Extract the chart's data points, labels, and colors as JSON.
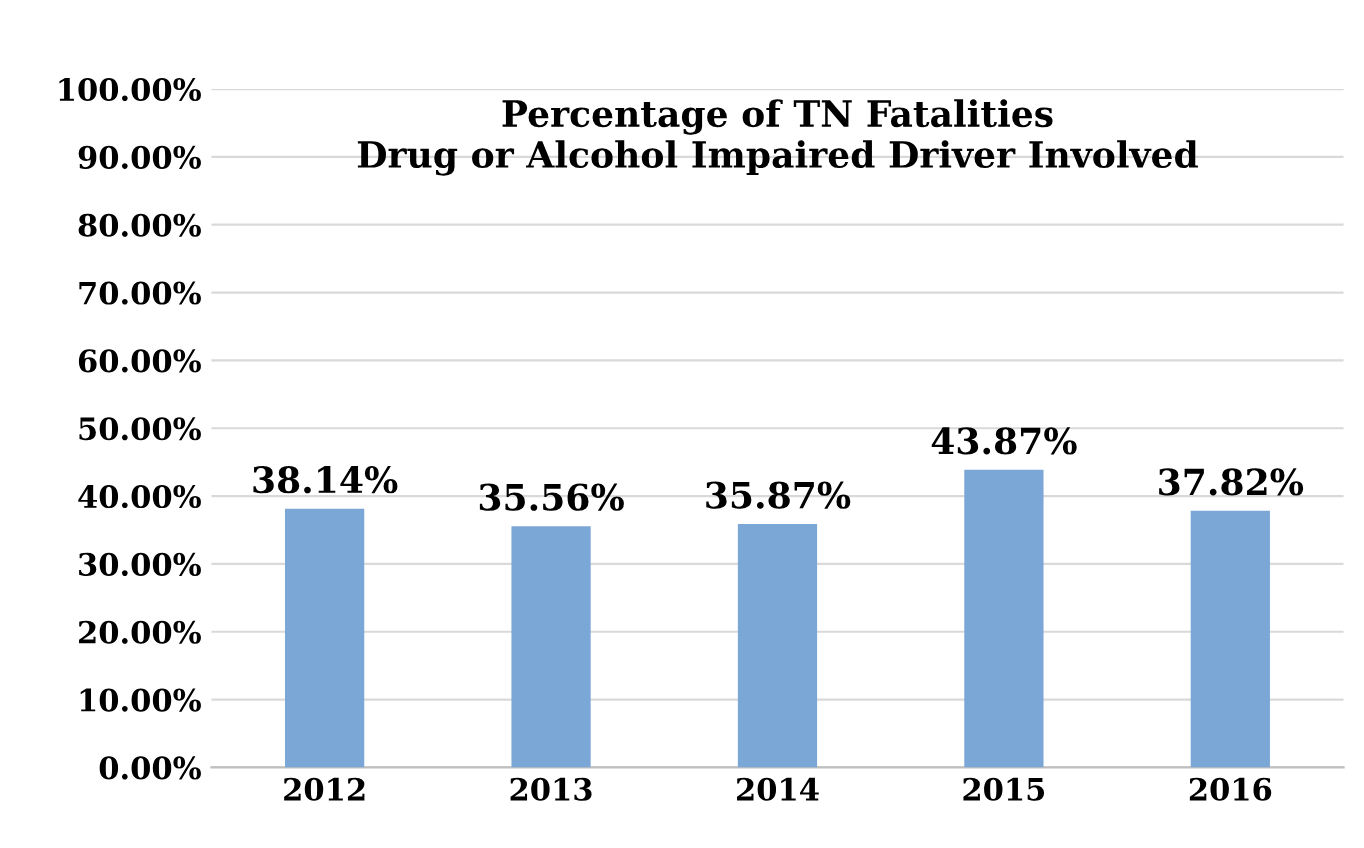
{
  "chart_data": {
    "type": "bar",
    "title": "Percentage of TN Fatalities\nDrug or Alcohol Impaired Driver Involved",
    "categories": [
      "2012",
      "2013",
      "2014",
      "2015",
      "2016"
    ],
    "values": [
      38.14,
      35.56,
      35.87,
      43.87,
      37.82
    ],
    "value_labels": [
      "38.14%",
      "35.56%",
      "35.87%",
      "43.87%",
      "37.82%"
    ],
    "color": "#7ba7d7",
    "ylim": [
      0,
      100
    ],
    "yticks": [
      {
        "value": 0,
        "label": "0.00%"
      },
      {
        "value": 10,
        "label": "10.00%"
      },
      {
        "value": 20,
        "label": "20.00%"
      },
      {
        "value": 30,
        "label": "30.00%"
      },
      {
        "value": 40,
        "label": "40.00%"
      },
      {
        "value": 50,
        "label": "50.00%"
      },
      {
        "value": 60,
        "label": "60.00%"
      },
      {
        "value": 70,
        "label": "70.00%"
      },
      {
        "value": 80,
        "label": "80.00%"
      },
      {
        "value": 90,
        "label": "90.00%"
      },
      {
        "value": 100,
        "label": "100.00%"
      }
    ],
    "grid": "y",
    "legend": false
  }
}
